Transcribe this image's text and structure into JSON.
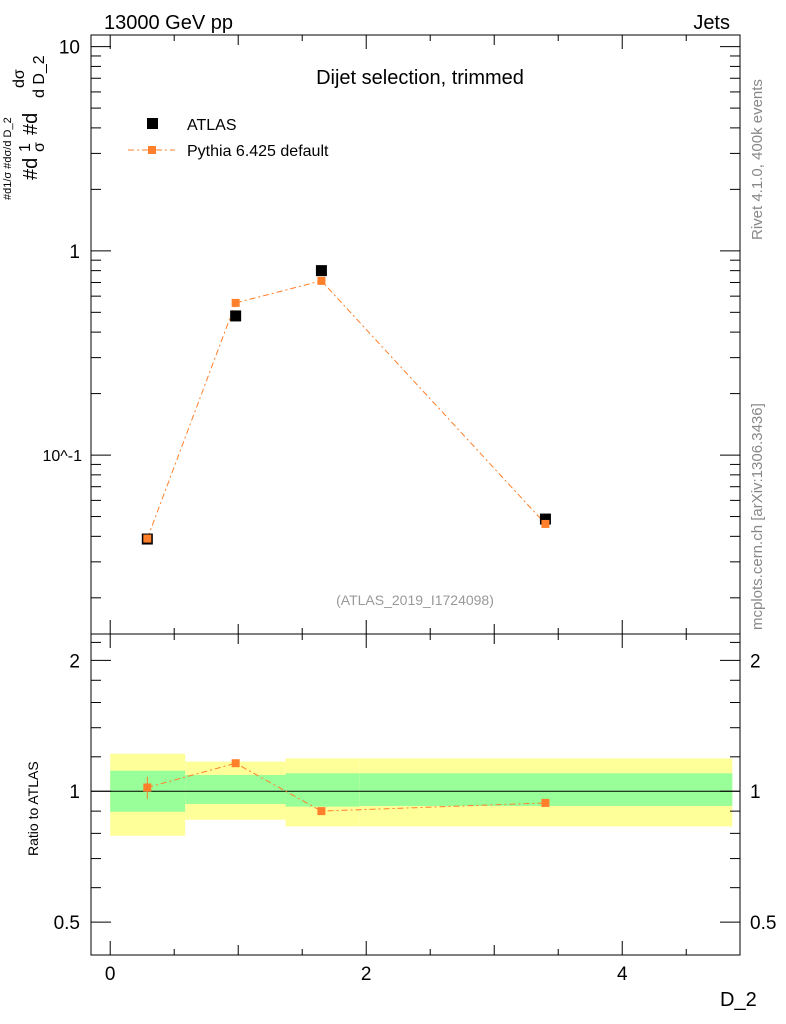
{
  "header": {
    "left": "13000 GeV pp",
    "right": "Jets"
  },
  "side_labels": {
    "rivet": "Rivet 4.1.0,  400k events",
    "mcplots": "mcplots.cern.ch [arXiv:1306.3436]"
  },
  "chart_data": {
    "type": "scatter",
    "title": "Dijet selection, trimmed",
    "analysis_id": "(ATLAS_2019_I1724098)",
    "xlabel": "D_2",
    "ylabel": "#d1/σ #dσ/d D_2",
    "ylabel_parts": {
      "num1": "1",
      "den1": "σ",
      "pre1": "#d",
      "pre2": "#d",
      "num2": "dσ",
      "den2": "d D_2"
    },
    "ratio_ylabel": "Ratio to ATLAS",
    "xlim": [
      -0.15,
      4.92
    ],
    "ylim": [
      0.0133,
      11.4
    ],
    "yscale": "log",
    "ratio_ylim": [
      0.42,
      2.3
    ],
    "x_ticks": [
      "0",
      "2",
      "4"
    ],
    "x_tick_values": [
      0,
      2,
      4
    ],
    "y_ticks": [
      "10",
      "1",
      "10^-1"
    ],
    "y_tick_values": [
      10,
      1,
      0.1
    ],
    "ratio_ticks": [
      "2",
      "1",
      "0.5"
    ],
    "ratio_tick_values": [
      2,
      1,
      0.5
    ],
    "legend": {
      "placement": "top-left",
      "entries": [
        "ATLAS",
        "Pythia 6.425 default"
      ]
    },
    "bins": [
      [
        0,
        0.586
      ],
      [
        0.586,
        1.37
      ],
      [
        1.37,
        1.95
      ],
      [
        1.95,
        4.86
      ]
    ],
    "series": [
      {
        "name": "ATLAS",
        "color": "#000000",
        "x": [
          0.29,
          0.98,
          1.65,
          3.4
        ],
        "values": [
          0.0388,
          0.48,
          0.8,
          0.0486
        ]
      },
      {
        "name": "Pythia 6.425 default",
        "color": "#ff7f2a",
        "x": [
          0.29,
          0.98,
          1.65,
          3.4
        ],
        "values": [
          0.039,
          0.556,
          0.713,
          0.046
        ]
      }
    ],
    "ratio": {
      "x": [
        0.29,
        0.98,
        1.65,
        3.4
      ],
      "values": [
        1.02,
        1.16,
        0.9,
        0.94
      ],
      "err": [
        0.06,
        0.01,
        0.01,
        0.015
      ]
    },
    "bands": {
      "yellow": {
        "color": "#ffff99",
        "lo": [
          0.79,
          0.86,
          0.83,
          0.83
        ],
        "hi": [
          1.22,
          1.17,
          1.19,
          1.19
        ]
      },
      "green": {
        "color": "#99ff99",
        "lo": [
          0.897,
          0.935,
          0.922,
          0.925
        ],
        "hi": [
          1.115,
          1.09,
          1.1,
          1.1
        ]
      }
    }
  }
}
